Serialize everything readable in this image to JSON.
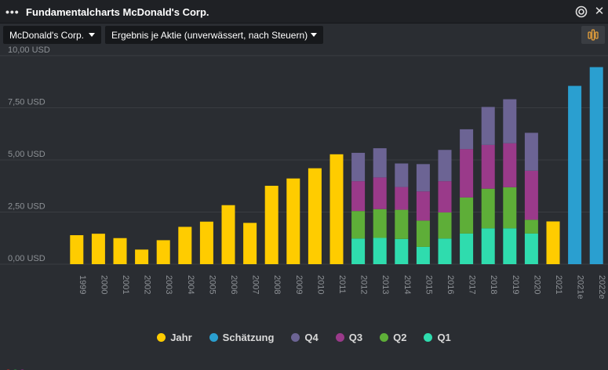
{
  "window": {
    "title": "Fundamentalcharts McDonald's Corp.",
    "menu_icon": "more-dots-icon",
    "target_icon": "target-icon",
    "close_icon": "close-icon",
    "close_glyph": "✕"
  },
  "toolbar": {
    "instrument": "McDonald's Corp.",
    "metric": "Ergebnis je Aktie (unverwässert, nach Steuern)",
    "settings_icon": "chart-settings-icon"
  },
  "colors": {
    "background": "#2a2d32",
    "Jahr": "#ffcc00",
    "Schätzung": "#2a9fd0",
    "Q4": "#6c6494",
    "Q3": "#9a3a8a",
    "Q2": "#5eae38",
    "Q1": "#2fdcae",
    "grid": "#3a3d42"
  },
  "chart_data": {
    "type": "bar",
    "stacked": true,
    "ylim": [
      0,
      10
    ],
    "yticks": [
      {
        "value": 0,
        "label": "0,00 USD"
      },
      {
        "value": 2.5,
        "label": "2,50 USD"
      },
      {
        "value": 5,
        "label": "5,00 USD"
      },
      {
        "value": 7.5,
        "label": "7,50 USD"
      },
      {
        "value": 10,
        "label": "10,00 USD"
      }
    ],
    "grid": true,
    "legend_position": "bottom",
    "categories": [
      "1999",
      "2000",
      "2001",
      "2002",
      "2003",
      "2004",
      "2005",
      "2006",
      "2007",
      "2008",
      "2009",
      "2010",
      "2011",
      "2012",
      "2013",
      "2014",
      "2015",
      "2016",
      "2017",
      "2018",
      "2019",
      "2020",
      "2021",
      "2021e",
      "2022e"
    ],
    "series": [
      {
        "name": "Jahr",
        "values": [
          1.39,
          1.46,
          1.25,
          0.7,
          1.15,
          1.79,
          2.04,
          2.83,
          1.98,
          3.76,
          4.11,
          4.6,
          5.27,
          null,
          null,
          null,
          null,
          null,
          null,
          null,
          null,
          null,
          2.05,
          null,
          null
        ]
      },
      {
        "name": "Schätzung",
        "values": [
          null,
          null,
          null,
          null,
          null,
          null,
          null,
          null,
          null,
          null,
          null,
          null,
          null,
          null,
          null,
          null,
          null,
          null,
          null,
          null,
          null,
          null,
          null,
          8.55,
          9.45
        ]
      },
      {
        "name": "Q1",
        "values": [
          null,
          null,
          null,
          null,
          null,
          null,
          null,
          null,
          null,
          null,
          null,
          null,
          null,
          1.23,
          1.26,
          1.21,
          0.83,
          1.23,
          1.47,
          1.72,
          1.72,
          1.47,
          null,
          null,
          null
        ]
      },
      {
        "name": "Q2",
        "values": [
          null,
          null,
          null,
          null,
          null,
          null,
          null,
          null,
          null,
          null,
          null,
          null,
          null,
          1.32,
          1.38,
          1.4,
          1.26,
          1.25,
          1.73,
          1.9,
          1.97,
          0.66,
          null,
          null,
          null
        ]
      },
      {
        "name": "Q3",
        "values": [
          null,
          null,
          null,
          null,
          null,
          null,
          null,
          null,
          null,
          null,
          null,
          null,
          null,
          1.43,
          1.52,
          1.09,
          1.4,
          1.5,
          2.32,
          2.1,
          2.11,
          2.35,
          null,
          null,
          null
        ]
      },
      {
        "name": "Q4",
        "values": [
          null,
          null,
          null,
          null,
          null,
          null,
          null,
          null,
          null,
          null,
          null,
          null,
          null,
          1.36,
          1.4,
          1.13,
          1.31,
          1.5,
          0.95,
          1.82,
          2.11,
          1.82,
          null,
          null,
          null
        ]
      }
    ]
  },
  "legend": [
    {
      "name": "Jahr",
      "color": "#ffcc00"
    },
    {
      "name": "Schätzung",
      "color": "#2a9fd0"
    },
    {
      "name": "Q4",
      "color": "#6c6494"
    },
    {
      "name": "Q3",
      "color": "#9a3a8a"
    },
    {
      "name": "Q2",
      "color": "#5eae38"
    },
    {
      "name": "Q1",
      "color": "#2fdcae"
    }
  ],
  "status_dots": [
    "#8a2a2a",
    "#2a6a3a",
    "#6a2a6a"
  ]
}
